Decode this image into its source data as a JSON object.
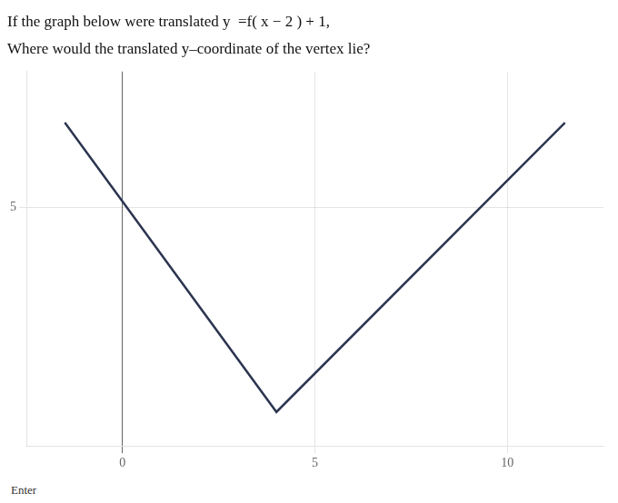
{
  "chart_data": {
    "type": "line",
    "title": "If the graph below were translated y  =f( x − 2 ) + 1,",
    "subtitle": "Where would the translated y–coordinate of the vertex lie?",
    "annotations": [
      "Enter"
    ],
    "x": [
      -1.5,
      4,
      11.5
    ],
    "values": [
      7.5,
      -1,
      7.5
    ],
    "color": "#2c3550",
    "xlim": [
      -2.5,
      12.5
    ],
    "xticks": [
      0,
      5,
      10
    ],
    "ylim": [
      -2,
      9
    ],
    "yticks": [
      5
    ],
    "grid": true
  }
}
